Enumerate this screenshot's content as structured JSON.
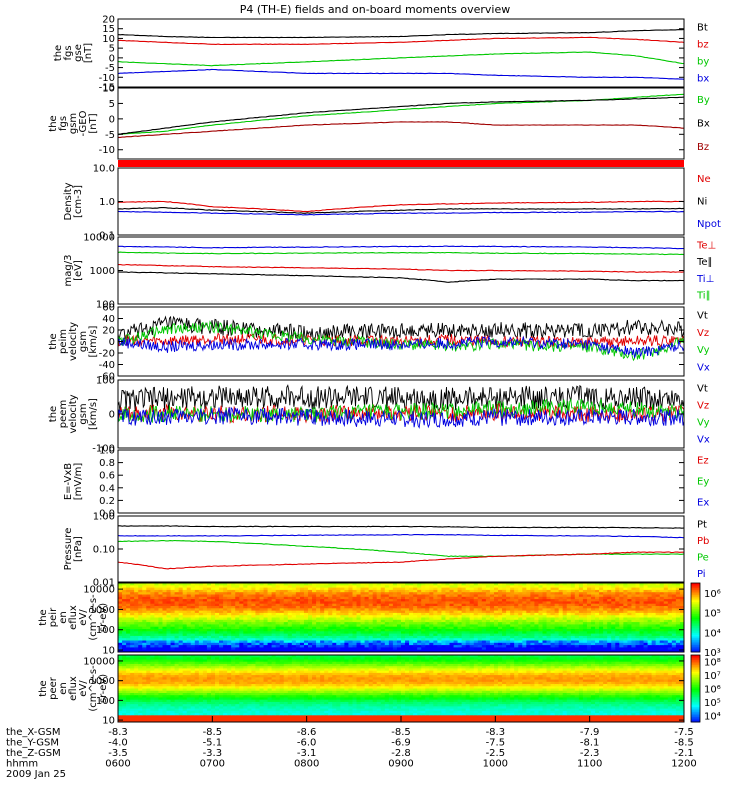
{
  "title": "P4 (TH-E) fields and on-board moments overview",
  "date_label": "2009 Jan 25",
  "chart_data": [
    {
      "type": "line",
      "ylabel_lines": [
        "the",
        "fgs",
        "gse",
        "[nT]"
      ],
      "ylim": [
        -15,
        20
      ],
      "yticks": [
        20,
        15,
        10,
        5,
        0,
        -5,
        -10,
        -15
      ],
      "legend": [
        {
          "name": "Bt",
          "color": "#000000"
        },
        {
          "name": "bz",
          "color": "#e00000"
        },
        {
          "name": "by",
          "color": "#00c800"
        },
        {
          "name": "bx",
          "color": "#0000e0"
        }
      ],
      "series": [
        {
          "name": "Bt",
          "color": "#000000",
          "x": [
            6.0,
            6.5,
            7.0,
            8.0,
            9.0,
            9.5,
            10.0,
            11.0,
            11.5,
            12.0
          ],
          "y": [
            12,
            11,
            10.5,
            10.5,
            11,
            12,
            12.5,
            13,
            14,
            14.5
          ]
        },
        {
          "name": "bz",
          "color": "#e00000",
          "x": [
            6.0,
            6.5,
            7.0,
            8.0,
            9.0,
            9.5,
            10.0,
            11.0,
            11.5,
            12.0
          ],
          "y": [
            9,
            8,
            7,
            7,
            8,
            9,
            10,
            10.5,
            9.5,
            8
          ]
        },
        {
          "name": "by",
          "color": "#00c800",
          "x": [
            6.0,
            6.5,
            7.0,
            8.0,
            9.0,
            9.5,
            10.0,
            11.0,
            11.5,
            12.0
          ],
          "y": [
            -2,
            -3,
            -4,
            -2,
            0,
            1,
            2,
            3,
            1,
            -3
          ]
        },
        {
          "name": "bx",
          "color": "#0000e0",
          "x": [
            6.0,
            6.5,
            7.0,
            8.0,
            9.0,
            9.5,
            10.0,
            11.0,
            11.5,
            12.0
          ],
          "y": [
            -8,
            -7,
            -6,
            -8,
            -8,
            -8,
            -9,
            -10,
            -10,
            -11
          ]
        }
      ]
    },
    {
      "type": "line",
      "ylabel_lines": [
        "the",
        "fgs",
        "gsm",
        "-GEO",
        "[nT]"
      ],
      "ylim": [
        -13,
        10
      ],
      "yticks": [
        10,
        5,
        0,
        -5,
        -10
      ],
      "legend": [
        {
          "name": "By",
          "color": "#00c800"
        },
        {
          "name": "Bx",
          "color": "#000000"
        },
        {
          "name": "Bz",
          "color": "#a00000"
        }
      ],
      "series": [
        {
          "name": "By",
          "color": "#00c800",
          "x": [
            6.0,
            6.5,
            7.0,
            8.0,
            9.0,
            9.5,
            10.0,
            11.0,
            11.5,
            12.0
          ],
          "y": [
            -5,
            -4,
            -2,
            1,
            3,
            4,
            5,
            6,
            7,
            8
          ]
        },
        {
          "name": "Bx",
          "color": "#000000",
          "x": [
            6.0,
            6.5,
            7.0,
            8.0,
            9.0,
            9.5,
            10.0,
            11.0,
            11.5,
            12.0
          ],
          "y": [
            -5,
            -3,
            -1,
            2,
            4,
            5,
            5.5,
            6,
            6.5,
            7
          ]
        },
        {
          "name": "Bz",
          "color": "#a00000",
          "x": [
            6.0,
            6.5,
            7.0,
            8.0,
            9.0,
            9.5,
            10.0,
            11.0,
            11.5,
            12.0
          ],
          "y": [
            -6,
            -5,
            -4,
            -2,
            -1,
            -1,
            -2,
            -2,
            -2,
            -3
          ]
        }
      ]
    },
    {
      "type": "bar",
      "description_color": "#ff0000",
      "mode_bar": true
    },
    {
      "type": "line",
      "ylabel_lines": [
        "Density",
        "[cm-3]"
      ],
      "yscale": "log",
      "ylim": [
        0.1,
        10
      ],
      "yticks": [
        10.0,
        1.0,
        0.1
      ],
      "ytick_labels": [
        "10.0",
        "1.0",
        "0.1"
      ],
      "legend": [
        {
          "name": "Ne",
          "color": "#e00000"
        },
        {
          "name": "Ni",
          "color": "#000000"
        },
        {
          "name": "Npot",
          "color": "#0000e0"
        }
      ],
      "series": [
        {
          "name": "Ne",
          "color": "#e00000",
          "x": [
            6.0,
            6.5,
            7.0,
            8.0,
            9.0,
            9.5,
            10.0,
            11.0,
            11.5,
            12.0
          ],
          "y": [
            0.95,
            1.0,
            0.7,
            0.5,
            0.8,
            0.85,
            0.9,
            0.95,
            1.0,
            1.0
          ]
        },
        {
          "name": "Ni",
          "color": "#000000",
          "x": [
            6.0,
            6.5,
            7.0,
            8.0,
            9.0,
            9.5,
            10.0,
            11.0,
            11.5,
            12.0
          ],
          "y": [
            0.6,
            0.65,
            0.55,
            0.45,
            0.55,
            0.6,
            0.6,
            0.6,
            0.6,
            0.62
          ]
        },
        {
          "name": "Npot",
          "color": "#0000e0",
          "x": [
            6.0,
            6.5,
            7.0,
            8.0,
            9.0,
            9.5,
            10.0,
            11.0,
            11.5,
            12.0
          ],
          "y": [
            0.5,
            0.48,
            0.45,
            0.4,
            0.45,
            0.45,
            0.47,
            0.48,
            0.5,
            0.5
          ]
        }
      ]
    },
    {
      "type": "line",
      "ylabel_lines": [
        "mag/3",
        "[eV]"
      ],
      "yscale": "log",
      "ylim": [
        100,
        10000
      ],
      "yticks": [
        10000,
        1000,
        100
      ],
      "ytick_labels": [
        "10000",
        "1000",
        "100"
      ],
      "legend": [
        {
          "name": "Te⊥",
          "color": "#e00000"
        },
        {
          "name": "Te∥",
          "color": "#000000"
        },
        {
          "name": "Ti⊥",
          "color": "#0000e0"
        },
        {
          "name": "Ti∥",
          "color": "#00c800"
        }
      ],
      "series": [
        {
          "name": "Ti⊥",
          "color": "#0000e0",
          "x": [
            6.0,
            6.5,
            7.0,
            8.0,
            9.0,
            9.5,
            10.0,
            11.0,
            11.5,
            12.0
          ],
          "y": [
            5200,
            5000,
            4800,
            5000,
            5200,
            5300,
            5200,
            5000,
            4800,
            4500
          ]
        },
        {
          "name": "Ti∥",
          "color": "#00c800",
          "x": [
            6.0,
            6.5,
            7.0,
            8.0,
            9.0,
            9.5,
            10.0,
            11.0,
            11.5,
            12.0
          ],
          "y": [
            3500,
            3300,
            3200,
            3300,
            3400,
            3400,
            3300,
            3200,
            3100,
            3000
          ]
        },
        {
          "name": "Te⊥",
          "color": "#e00000",
          "x": [
            6.0,
            6.5,
            7.0,
            8.0,
            9.0,
            9.5,
            10.0,
            11.0,
            11.5,
            12.0
          ],
          "y": [
            1500,
            1400,
            1300,
            1200,
            1100,
            1000,
            1000,
            950,
            900,
            900
          ]
        },
        {
          "name": "Te∥",
          "color": "#000000",
          "x": [
            6.0,
            6.5,
            7.0,
            8.0,
            9.0,
            9.5,
            10.0,
            11.0,
            11.5,
            12.0
          ],
          "y": [
            900,
            850,
            800,
            700,
            600,
            450,
            550,
            550,
            500,
            500
          ]
        }
      ]
    },
    {
      "type": "line",
      "ylabel_lines": [
        "the",
        "peim",
        "velocity",
        "gsm",
        "[km/s]"
      ],
      "ylim": [
        -60,
        60
      ],
      "yticks": [
        60,
        40,
        20,
        0,
        -20,
        -40,
        -60
      ],
      "legend": [
        {
          "name": "Vt",
          "color": "#000000"
        },
        {
          "name": "Vz",
          "color": "#e00000"
        },
        {
          "name": "Vy",
          "color": "#00c800"
        },
        {
          "name": "Vx",
          "color": "#0000e0"
        }
      ],
      "series": [
        {
          "name": "Vt",
          "color": "#000000",
          "x": [
            6.0,
            6.5,
            7.0,
            8.0,
            9.0,
            9.5,
            10.0,
            11.0,
            11.5,
            12.0
          ],
          "y": [
            10,
            30,
            25,
            15,
            18,
            22,
            20,
            18,
            25,
            20
          ]
        },
        {
          "name": "Vz",
          "color": "#e00000",
          "x": [
            6.0,
            6.5,
            7.0,
            8.0,
            9.0,
            9.5,
            10.0,
            11.0,
            11.5,
            12.0
          ],
          "y": [
            2,
            0,
            5,
            2,
            0,
            3,
            0,
            -2,
            0,
            2
          ]
        },
        {
          "name": "Vy",
          "color": "#00c800",
          "x": [
            6.0,
            6.5,
            7.0,
            8.0,
            9.0,
            9.5,
            10.0,
            11.0,
            11.5,
            12.0
          ],
          "y": [
            0,
            20,
            25,
            5,
            -5,
            -8,
            -5,
            -10,
            -25,
            0
          ]
        },
        {
          "name": "Vx",
          "color": "#0000e0",
          "x": [
            6.0,
            6.5,
            7.0,
            8.0,
            9.0,
            9.5,
            10.0,
            11.0,
            11.5,
            12.0
          ],
          "y": [
            0,
            -10,
            -5,
            -5,
            -5,
            -3,
            0,
            -5,
            -20,
            -5
          ]
        }
      ]
    },
    {
      "type": "line",
      "ylabel_lines": [
        "the",
        "peem",
        "velocity",
        "gsm",
        "[km/s]"
      ],
      "ylim": [
        -100,
        100
      ],
      "yticks": [
        100,
        0,
        -100
      ],
      "legend": [
        {
          "name": "Vt",
          "color": "#000000"
        },
        {
          "name": "Vz",
          "color": "#e00000"
        },
        {
          "name": "Vy",
          "color": "#00c800"
        },
        {
          "name": "Vx",
          "color": "#0000e0"
        }
      ],
      "series": [
        {
          "name": "Vt",
          "color": "#000000",
          "x": [
            6.0,
            6.5,
            7.0,
            8.0,
            9.0,
            9.5,
            10.0,
            11.0,
            11.5,
            12.0
          ],
          "y": [
            40,
            45,
            50,
            50,
            45,
            45,
            48,
            50,
            45,
            42
          ]
        },
        {
          "name": "Vz",
          "color": "#e00000",
          "x": [
            6.0,
            6.5,
            7.0,
            8.0,
            9.0,
            9.5,
            10.0,
            11.0,
            11.5,
            12.0
          ],
          "y": [
            0,
            5,
            0,
            0,
            5,
            0,
            5,
            0,
            0,
            0
          ]
        },
        {
          "name": "Vy",
          "color": "#00c800",
          "x": [
            6.0,
            6.5,
            7.0,
            8.0,
            9.0,
            9.5,
            10.0,
            11.0,
            11.5,
            12.0
          ],
          "y": [
            0,
            0,
            0,
            0,
            5,
            10,
            15,
            20,
            15,
            10
          ]
        },
        {
          "name": "Vx",
          "color": "#0000e0",
          "x": [
            6.0,
            6.5,
            7.0,
            8.0,
            9.0,
            9.5,
            10.0,
            11.0,
            11.5,
            12.0
          ],
          "y": [
            -10,
            -10,
            -5,
            -10,
            -15,
            -15,
            -10,
            -10,
            -10,
            -10
          ]
        }
      ]
    },
    {
      "type": "line",
      "ylabel_lines": [
        "E=-VxB",
        "[mV/m]"
      ],
      "ylim": [
        0.0,
        1.0
      ],
      "yticks": [
        1.0,
        0.8,
        0.6,
        0.4,
        0.2,
        0.0
      ],
      "ytick_labels": [
        "1.0",
        "0.8",
        "0.6",
        "0.4",
        "0.2",
        "0.0"
      ],
      "legend": [
        {
          "name": "Ez",
          "color": "#e00000"
        },
        {
          "name": "Ey",
          "color": "#00c800"
        },
        {
          "name": "Ex",
          "color": "#0000e0"
        }
      ],
      "series": []
    },
    {
      "type": "line",
      "ylabel_lines": [
        "Pressure",
        "[nPa]"
      ],
      "yscale": "log",
      "ylim": [
        0.01,
        1.0
      ],
      "yticks": [
        1.0,
        0.1,
        0.01
      ],
      "ytick_labels": [
        "1.00",
        "0.10",
        "0.01"
      ],
      "legend": [
        {
          "name": "Pt",
          "color": "#000000"
        },
        {
          "name": "Pb",
          "color": "#e00000"
        },
        {
          "name": "Pe",
          "color": "#00c800"
        },
        {
          "name": "Pi",
          "color": "#0000e0"
        }
      ],
      "series": [
        {
          "name": "Pt",
          "color": "#000000",
          "x": [
            6.0,
            6.5,
            7.0,
            8.0,
            9.0,
            9.5,
            10.0,
            11.0,
            11.5,
            12.0
          ],
          "y": [
            0.5,
            0.5,
            0.48,
            0.48,
            0.48,
            0.47,
            0.45,
            0.45,
            0.44,
            0.43
          ]
        },
        {
          "name": "Pi",
          "color": "#0000e0",
          "x": [
            6.0,
            6.5,
            7.0,
            8.0,
            9.0,
            9.5,
            10.0,
            11.0,
            11.5,
            12.0
          ],
          "y": [
            0.25,
            0.25,
            0.25,
            0.26,
            0.27,
            0.27,
            0.26,
            0.25,
            0.24,
            0.22
          ]
        },
        {
          "name": "Pe",
          "color": "#00c800",
          "x": [
            6.0,
            6.5,
            7.0,
            8.0,
            9.0,
            9.5,
            10.0,
            11.0,
            11.5,
            12.0
          ],
          "y": [
            0.17,
            0.18,
            0.17,
            0.12,
            0.08,
            0.06,
            0.06,
            0.07,
            0.07,
            0.07
          ]
        },
        {
          "name": "Pb",
          "color": "#e00000",
          "x": [
            6.0,
            6.5,
            7.0,
            8.0,
            9.0,
            9.5,
            10.0,
            11.0,
            11.5,
            12.0
          ],
          "y": [
            0.04,
            0.025,
            0.03,
            0.035,
            0.04,
            0.05,
            0.06,
            0.07,
            0.08,
            0.08
          ]
        }
      ]
    },
    {
      "type": "heatmap",
      "ylabel_lines": [
        "the",
        "peir",
        "en",
        "eflux",
        "eV/",
        "(cm^2-s-",
        "sr-eV)"
      ],
      "yscale": "log",
      "ylim": [
        8,
        20000
      ],
      "yticks": [
        10000,
        1000,
        100,
        10
      ],
      "ytick_labels": [
        "10000",
        "1000",
        "100",
        "10"
      ],
      "colorbar_ticks": [
        "10⁶",
        "10⁵",
        "10⁴",
        "10³"
      ],
      "colorbar_range": [
        3,
        6.5
      ]
    },
    {
      "type": "heatmap",
      "ylabel_lines": [
        "the",
        "peer",
        "en",
        "eflux",
        "eV/",
        "(cm^2-s-",
        "sr-eV)"
      ],
      "yscale": "log",
      "ylim": [
        8,
        20000
      ],
      "yticks": [
        10000,
        1000,
        100,
        10
      ],
      "ytick_labels": [
        "10000",
        "1000",
        "100",
        "10"
      ],
      "colorbar_ticks": [
        "10⁸",
        "10⁷",
        "10⁶",
        "10⁵",
        "10⁴"
      ],
      "colorbar_range": [
        3.5,
        8.5
      ]
    }
  ],
  "x_axis": {
    "rows": [
      {
        "label": "the_X-GSM",
        "values": [
          "-8.3",
          "-8.5",
          "-8.6",
          "-8.5",
          "-8.3",
          "-7.9",
          "-7.5"
        ]
      },
      {
        "label": "the_Y-GSM",
        "values": [
          "-4.0",
          "-5.1",
          "-6.0",
          "-6.9",
          "-7.5",
          "-8.1",
          "-8.5"
        ]
      },
      {
        "label": "the_Z-GSM",
        "values": [
          "-3.5",
          "-3.3",
          "-3.1",
          "-2.8",
          "-2.5",
          "-2.3",
          "-2.1"
        ]
      },
      {
        "label": "hhmm",
        "values": [
          "0600",
          "0700",
          "0800",
          "0900",
          "1000",
          "1100",
          "1200"
        ]
      }
    ],
    "time_range_hours": [
      6,
      12
    ]
  }
}
